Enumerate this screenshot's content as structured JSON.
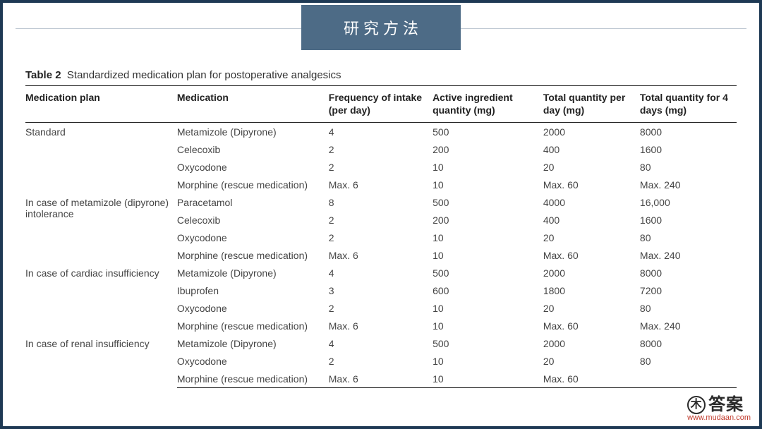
{
  "header": {
    "title": "研究方法"
  },
  "table": {
    "caption_label": "Table 2",
    "caption_text": "Standardized medication plan for postoperative analgesics",
    "columns": [
      "Medication plan",
      "Medication",
      "Frequency of intake (per day)",
      "Active ingredient quantity (mg)",
      "Total quantity per day (mg)",
      "Total quantity for 4 days (mg)"
    ],
    "groups": [
      {
        "plan": "Standard",
        "rows": [
          {
            "med": "Metamizole (Dipyrone)",
            "freq": "4",
            "active": "500",
            "perday": "2000",
            "for4": "8000"
          },
          {
            "med": "Celecoxib",
            "freq": "2",
            "active": "200",
            "perday": "400",
            "for4": "1600"
          },
          {
            "med": "Oxycodone",
            "freq": "2",
            "active": "10",
            "perday": "20",
            "for4": "80"
          },
          {
            "med": "Morphine (rescue medication)",
            "freq": "Max. 6",
            "active": "10",
            "perday": "Max. 60",
            "for4": "Max. 240"
          }
        ]
      },
      {
        "plan": "In case of metamizole (dipyrone) intolerance",
        "rows": [
          {
            "med": "Paracetamol",
            "freq": "8",
            "active": "500",
            "perday": "4000",
            "for4": "16,000"
          },
          {
            "med": "Celecoxib",
            "freq": "2",
            "active": "200",
            "perday": "400",
            "for4": "1600"
          },
          {
            "med": "Oxycodone",
            "freq": "2",
            "active": "10",
            "perday": "20",
            "for4": "80"
          },
          {
            "med": "Morphine (rescue medication)",
            "freq": "Max. 6",
            "active": "10",
            "perday": "Max. 60",
            "for4": "Max. 240"
          }
        ]
      },
      {
        "plan": "In case of cardiac insufficiency",
        "rows": [
          {
            "med": "Metamizole (Dipyrone)",
            "freq": "4",
            "active": "500",
            "perday": "2000",
            "for4": "8000"
          },
          {
            "med": "Ibuprofen",
            "freq": "3",
            "active": "600",
            "perday": "1800",
            "for4": "7200"
          },
          {
            "med": "Oxycodone",
            "freq": "2",
            "active": "10",
            "perday": "20",
            "for4": "80"
          },
          {
            "med": "Morphine (rescue medication)",
            "freq": "Max. 6",
            "active": "10",
            "perday": "Max. 60",
            "for4": "Max. 240"
          }
        ]
      },
      {
        "plan": "In case of renal insufficiency",
        "rows": [
          {
            "med": "Metamizole (Dipyrone)",
            "freq": "4",
            "active": "500",
            "perday": "2000",
            "for4": "8000"
          },
          {
            "med": "Oxycodone",
            "freq": "2",
            "active": "10",
            "perday": "20",
            "for4": "80"
          },
          {
            "med": "Morphine (rescue medication)",
            "freq": "Max. 6",
            "active": "10",
            "perday": "Max. 60",
            "for4": ""
          }
        ]
      }
    ]
  },
  "watermark": {
    "brand_prefix_char": "木",
    "brand_text": "答案",
    "url": "www.mudaan.com"
  },
  "colors": {
    "frame_border": "#1e3954",
    "badge_bg": "#4d6b86",
    "badge_text": "#ffffff",
    "rule": "#bfc9d3",
    "table_border": "#222222",
    "text": "#3d3d3d",
    "wm_url": "#c0392b"
  }
}
